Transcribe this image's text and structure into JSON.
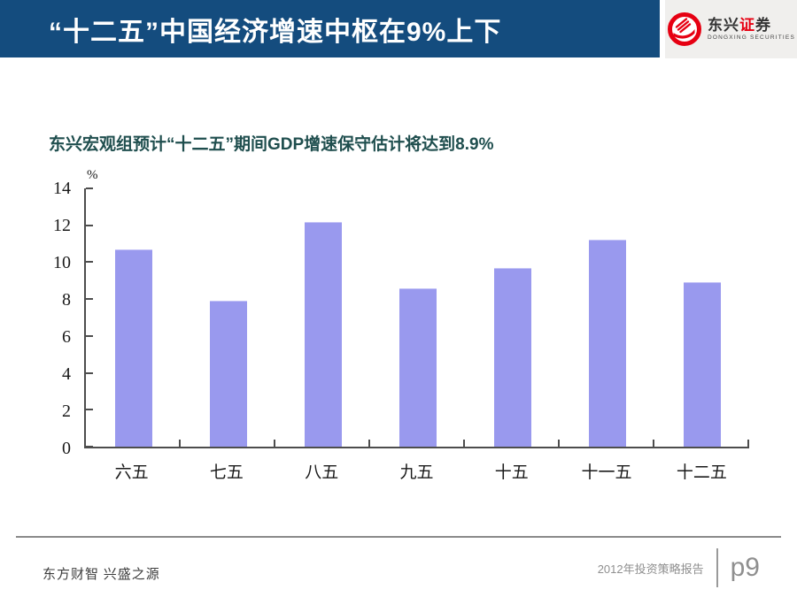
{
  "header": {
    "title": "“十二五”中国经济增速中枢在9%上下",
    "logo": {
      "part1": "东兴",
      "part2": "证",
      "part3": "券",
      "en": "DONGXING SECURITIES"
    }
  },
  "chart_data": {
    "type": "bar",
    "title": "东兴宏观组预计“十二五”期间GDP增速保守估计将达到8.9%",
    "categories": [
      "六五",
      "七五",
      "八五",
      "九五",
      "十五",
      "十一五",
      "十二五"
    ],
    "values": [
      10.7,
      7.9,
      12.2,
      8.6,
      9.7,
      11.2,
      8.9
    ],
    "ylabel": "%",
    "xlabel": "",
    "ylim": [
      0,
      14
    ],
    "yticks": [
      0,
      2,
      4,
      6,
      8,
      10,
      12,
      14
    ],
    "grid": false,
    "legend": "none",
    "bar_color": "#9999ee"
  },
  "footer": {
    "left": "东方财智 兴盛之源",
    "report": "2012年投资策略报告",
    "page": "p9"
  },
  "colors": {
    "banner_blue": "#144c7e",
    "chart_title": "#1f4e4e",
    "bar": "#9999ee",
    "logo_red": "#e60012",
    "axis": "#4d4d4d"
  }
}
